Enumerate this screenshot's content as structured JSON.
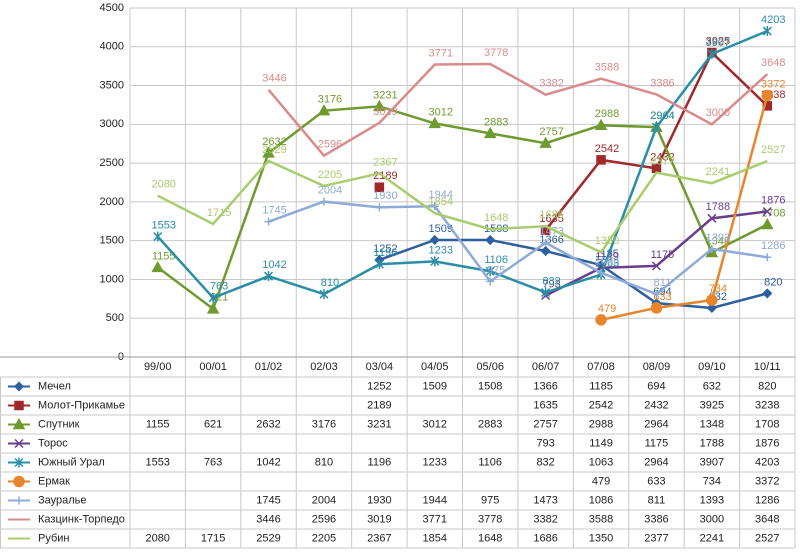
{
  "chart_data": {
    "type": "line",
    "categories": [
      "99/00",
      "00/01",
      "01/02",
      "02/03",
      "03/04",
      "04/05",
      "05/06",
      "06/07",
      "07/08",
      "08/09",
      "09/10",
      "10/11"
    ],
    "ylim": [
      0,
      4500
    ],
    "yticks": [
      0,
      500,
      1000,
      1500,
      2000,
      2500,
      3000,
      3500,
      4000,
      4500
    ],
    "grid": true,
    "series": [
      {
        "name": "Мечел",
        "color": "#2e5f9e",
        "marker": "diamond",
        "values": [
          null,
          null,
          null,
          null,
          1252,
          1509,
          1508,
          1366,
          1185,
          694,
          632,
          820
        ]
      },
      {
        "name": "Молот-Прикамье",
        "color": "#a0282a",
        "marker": "square",
        "values": [
          null,
          null,
          null,
          null,
          2189,
          null,
          null,
          1635,
          2542,
          2432,
          3925,
          3238
        ]
      },
      {
        "name": "Спутник",
        "color": "#6f9a2f",
        "marker": "triangle",
        "values": [
          1155,
          621,
          2632,
          3176,
          3231,
          3012,
          2883,
          2757,
          2988,
          2964,
          1348,
          1708
        ]
      },
      {
        "name": "Торос",
        "color": "#6a3d8f",
        "marker": "x",
        "values": [
          null,
          null,
          null,
          null,
          null,
          null,
          null,
          793,
          1149,
          1175,
          1788,
          1876
        ]
      },
      {
        "name": "Южный Урал",
        "color": "#2a8ea6",
        "marker": "star",
        "values": [
          1553,
          763,
          1042,
          810,
          1196,
          1233,
          1106,
          832,
          1063,
          2964,
          3907,
          4203
        ]
      },
      {
        "name": "Ермак",
        "color": "#e8842c",
        "marker": "circle",
        "values": [
          null,
          null,
          null,
          null,
          null,
          null,
          null,
          null,
          479,
          633,
          734,
          3372
        ]
      },
      {
        "name": "Зауралье",
        "color": "#8eaad8",
        "marker": "plus",
        "values": [
          null,
          null,
          1745,
          2004,
          1930,
          1944,
          975,
          1473,
          1086,
          811,
          1393,
          1286
        ]
      },
      {
        "name": "Казцинк-Торпедо",
        "color": "#d98b8b",
        "marker": "none",
        "values": [
          null,
          null,
          3446,
          2596,
          3019,
          3771,
          3778,
          3382,
          3588,
          3386,
          3000,
          3648
        ]
      },
      {
        "name": "Рубин",
        "color": "#a9cc6f",
        "marker": "none",
        "values": [
          2080,
          1715,
          2529,
          2205,
          2367,
          1854,
          1648,
          1686,
          1350,
          2377,
          2241,
          2527
        ]
      }
    ]
  }
}
